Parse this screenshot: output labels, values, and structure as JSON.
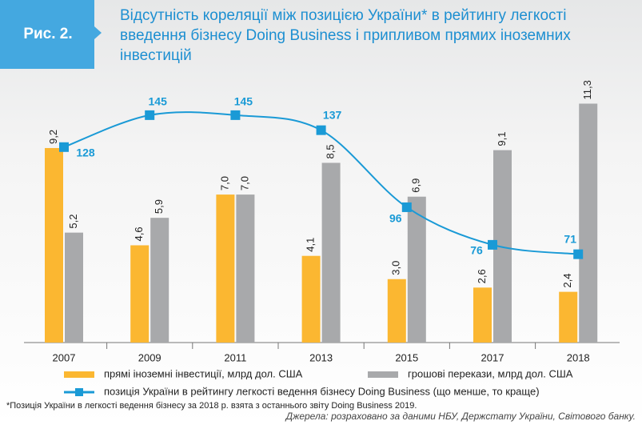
{
  "chart_data": {
    "type": "bar",
    "figure_label": "Рис. 2.",
    "title": "Відсутність кореляції між позицією України* в рейтингу легкості введення бізнесу Doing Business і припливом прямих іноземних інвестицій",
    "categories": [
      "2007",
      "2009",
      "2011",
      "2013",
      "2015",
      "2017",
      "2018"
    ],
    "series": [
      {
        "name": "прямі іноземні інвестиції, млрд дол. США",
        "type": "bar",
        "color": "#fbb731",
        "values": [
          9.2,
          4.6,
          7.0,
          4.1,
          3.0,
          2.6,
          2.4
        ],
        "value_labels": [
          "9,2",
          "4,6",
          "7,0",
          "4,1",
          "3,0",
          "2,6",
          "2,4"
        ]
      },
      {
        "name": "грошові перекази, млрд дол. США",
        "type": "bar",
        "color": "#a8a9ab",
        "values": [
          5.2,
          5.9,
          7.0,
          8.5,
          6.9,
          9.1,
          11.3
        ],
        "value_labels": [
          "5,2",
          "5,9",
          "7,0",
          "8,5",
          "6,9",
          "9,1",
          "11,3"
        ]
      },
      {
        "name": "позиція України в рейтингу легкості ведення бізнесу Doing Business (що менше, то краще)",
        "type": "line",
        "axis": "y2",
        "color": "#1a9ad6",
        "values": [
          128,
          145,
          145,
          137,
          96,
          76,
          71
        ]
      }
    ],
    "ylim": [
      0,
      12
    ],
    "y2lim": [
      24,
      159
    ],
    "footnote": "*Позиція України в легкості ведення бізнесу за 2018 р. взята з останнього звіту Doing Business 2019.",
    "source": "Джерела: розраховано за даними НБУ, Держстату України, Світового банку."
  }
}
